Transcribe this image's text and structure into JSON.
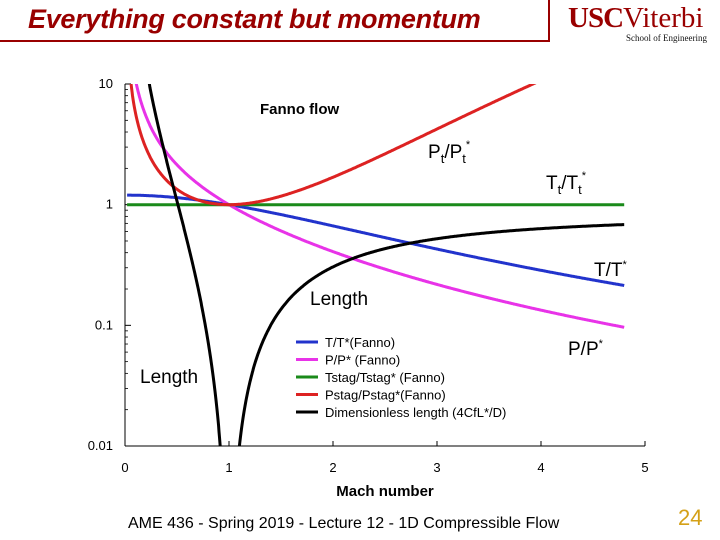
{
  "slide": {
    "title": "Everything constant but momentum",
    "logo": {
      "main_1": "USC",
      "main_2": "Viterbi",
      "sub": "School of Engineering"
    },
    "footer": "AME 436 - Spring 2019 - Lecture 12 - 1D Compressible Flow",
    "page_number": "24"
  },
  "chart_data": {
    "type": "line",
    "title": "Fanno flow",
    "xlabel": "Mach number",
    "ylabel": "",
    "xlim": [
      0,
      5
    ],
    "ylim": [
      0.01,
      10
    ],
    "y_scale": "log",
    "x_ticks": [
      "0",
      "1",
      "2",
      "3",
      "4",
      "5"
    ],
    "y_ticks": [
      {
        "value": 10,
        "label": "10"
      },
      {
        "value": 1,
        "label": "1"
      },
      {
        "value": 0.1,
        "label": "0.1"
      },
      {
        "value": 0.01,
        "label": "0.01"
      }
    ],
    "grid": false,
    "legend_position": "bottom-right",
    "series": [
      {
        "name": "T/T*(Fanno)",
        "color": "#2233cc",
        "formula": "T_ratio",
        "points": [
          [
            0.05,
            1.2
          ],
          [
            0.5,
            1.143
          ],
          [
            1,
            1
          ],
          [
            2,
            0.667
          ],
          [
            3,
            0.429
          ],
          [
            4,
            0.286
          ],
          [
            4.8,
            0.214
          ]
        ]
      },
      {
        "name": "P/P* (Fanno)",
        "color": "#e833e8",
        "formula": "P_ratio",
        "points": [
          [
            0.05,
            21.9
          ],
          [
            0.5,
            2.138
          ],
          [
            1,
            1
          ],
          [
            2,
            0.408
          ],
          [
            3,
            0.218
          ],
          [
            4,
            0.134
          ],
          [
            4.8,
            0.096
          ]
        ]
      },
      {
        "name": "Tstag/Tstag* (Fanno)",
        "color": "#1a8a1a",
        "formula": "Tt_ratio",
        "points": [
          [
            0,
            1
          ],
          [
            4.8,
            1
          ]
        ]
      },
      {
        "name": "Pstag/Pstag*(Fanno)",
        "color": "#dd2222",
        "formula": "Pt_ratio",
        "points": [
          [
            0.05,
            11.6
          ],
          [
            0.5,
            1.34
          ],
          [
            1,
            1
          ],
          [
            2,
            1.688
          ],
          [
            3,
            4.235
          ],
          [
            3.9,
            10
          ]
        ]
      },
      {
        "name": "Dimensionless length (4CfL*/D)",
        "color": "#000000",
        "formula": "length",
        "points": [
          [
            0.05,
            280
          ],
          [
            0.5,
            1.069
          ],
          [
            0.9,
            0.0145
          ],
          [
            1,
            0
          ],
          [
            1.1,
            0.0099
          ],
          [
            2,
            0.305
          ],
          [
            3,
            0.522
          ],
          [
            4,
            0.633
          ],
          [
            4.8,
            0.686
          ]
        ]
      }
    ],
    "annotations": [
      {
        "id": "pt",
        "base": "P",
        "sub1": "t",
        "mid": "/P",
        "sub2": "t",
        "sup": "*"
      },
      {
        "id": "tt",
        "base": "T",
        "sub1": "t",
        "mid": "/T",
        "sub2": "t",
        "sup": "*"
      },
      {
        "id": "tt-star",
        "base": "T/T",
        "sup": "*"
      },
      {
        "id": "pp-star",
        "base": "P/P",
        "sup": "*"
      },
      {
        "id": "length-upper",
        "base": "Length"
      },
      {
        "id": "length-lower",
        "base": "Length"
      }
    ]
  }
}
